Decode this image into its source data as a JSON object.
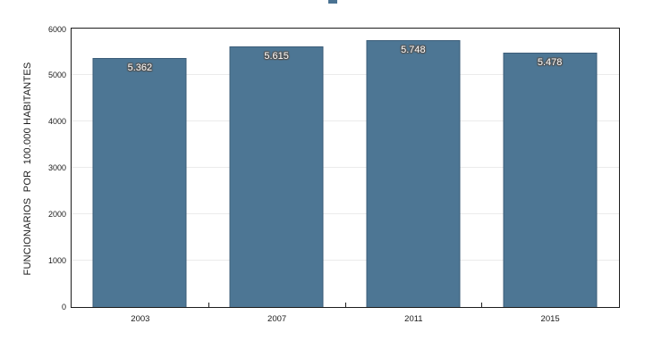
{
  "chart_data": {
    "type": "bar",
    "categories": [
      "2003",
      "2007",
      "2011",
      "2015"
    ],
    "values": [
      5362,
      5615,
      5748,
      5478
    ],
    "bar_labels": [
      "5.362",
      "5.615",
      "5.748",
      "5.478"
    ],
    "title": "",
    "xlabel": "",
    "ylabel": "FUNCIONARIOS  POR  100.000 HABITANTES",
    "ylim": [
      0,
      6000
    ],
    "yticks": [
      0,
      1000,
      2000,
      3000,
      4000,
      5000,
      6000
    ],
    "grid": "horizontal",
    "legend_position": "none"
  },
  "colors": {
    "bar_fill": "#4d7694",
    "bar_edge": "#2d4b60",
    "gridline": "#ebebeb",
    "frame": "#1c1c1c",
    "tick_text": "#1a1a1a",
    "bar_label_text": "#ffffff",
    "bar_label_outline": "#555555",
    "title_fragment": "#4a7292"
  }
}
